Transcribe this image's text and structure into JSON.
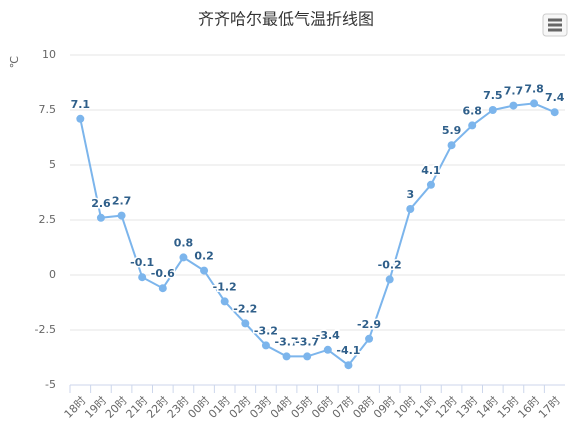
{
  "chart_data": {
    "type": "line",
    "title": "齐齐哈尔最低气温折线图",
    "y_label": "℃",
    "categories": [
      "18时",
      "19时",
      "20时",
      "21时",
      "22时",
      "23时",
      "00时",
      "01时",
      "02时",
      "03时",
      "04时",
      "05时",
      "06时",
      "07时",
      "08时",
      "09时",
      "10时",
      "11时",
      "12时",
      "13时",
      "14时",
      "15时",
      "16时",
      "17时"
    ],
    "series": [
      {
        "name": "最低气温",
        "color": "#7cb5ec",
        "values": [
          7.1,
          2.6,
          2.7,
          -0.1,
          -0.6,
          0.8,
          0.2,
          -1.2,
          -2.2,
          -3.2,
          -3.7,
          -3.7,
          -3.4,
          -4.1,
          -2.9,
          -0.2,
          3,
          4.1,
          5.9,
          6.8,
          7.5,
          7.7,
          7.8,
          7.4
        ]
      }
    ],
    "ylim": [
      -5,
      10
    ],
    "yticks": [
      -5,
      -2.5,
      0,
      2.5,
      5,
      7.5,
      10
    ],
    "grid": true
  }
}
